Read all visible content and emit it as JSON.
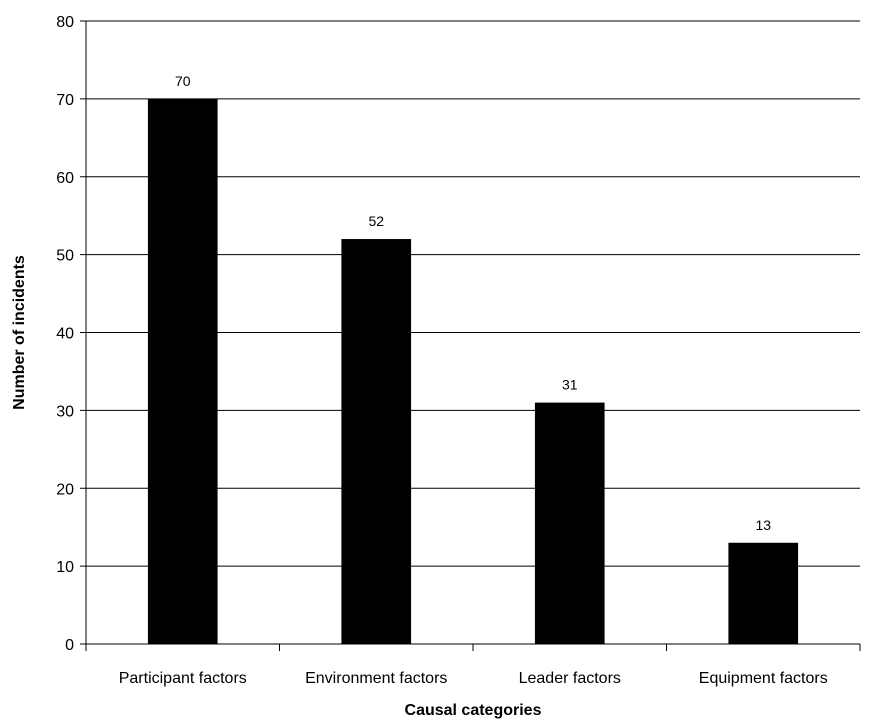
{
  "chart_data": {
    "type": "bar",
    "title": "",
    "xlabel": "Causal categories",
    "ylabel": "Number of incidents",
    "categories": [
      "Participant factors",
      "Environment factors",
      "Leader factors",
      "Equipment factors"
    ],
    "values": [
      70,
      52,
      31,
      13
    ],
    "data_labels": [
      "70",
      "52",
      "31",
      "13"
    ],
    "ylim": [
      0,
      80
    ],
    "yticks": [
      0,
      10,
      20,
      30,
      40,
      50,
      60,
      70,
      80
    ],
    "ytick_labels": [
      "0",
      "10",
      "20",
      "30",
      "40",
      "50",
      "60",
      "70",
      "80"
    ],
    "grid": true,
    "legend": "none",
    "bar_color": "#000000"
  }
}
